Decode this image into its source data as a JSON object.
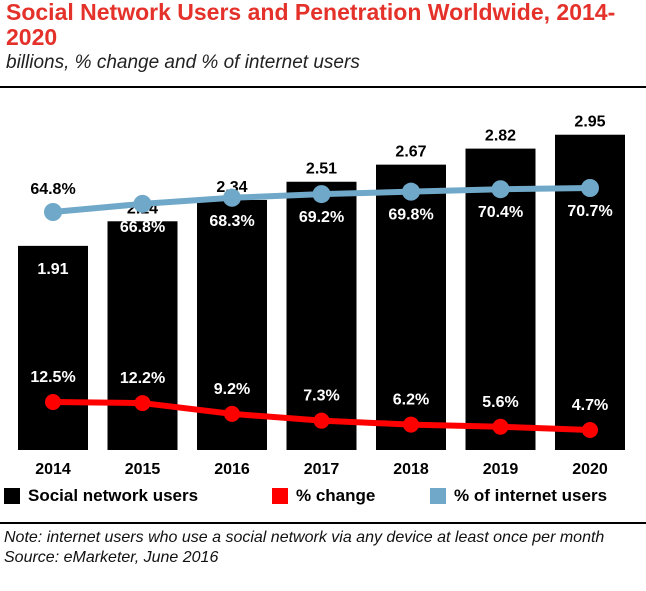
{
  "header": {
    "title": "Social Network Users and Penetration Worldwide, 2014-2020",
    "subtitle": "billions, % change and % of internet users"
  },
  "chart_data": {
    "type": "bar",
    "title": "Social Network Users and Penetration Worldwide, 2014-2020",
    "subtitle": "billions, % change and % of internet users",
    "categories": [
      "2014",
      "2015",
      "2016",
      "2017",
      "2018",
      "2019",
      "2020"
    ],
    "series": [
      {
        "name": "Social network users",
        "type": "bar",
        "unit": "billions",
        "values": [
          1.91,
          2.14,
          2.34,
          2.51,
          2.67,
          2.82,
          2.95
        ],
        "labels": [
          "1.91",
          "2.14",
          "2.34",
          "2.51",
          "2.67",
          "2.82",
          "2.95"
        ]
      },
      {
        "name": "% change",
        "type": "line",
        "unit": "%",
        "values": [
          12.5,
          12.2,
          9.2,
          7.3,
          6.2,
          5.6,
          4.7
        ],
        "labels": [
          "12.5%",
          "12.2%",
          "9.2%",
          "7.3%",
          "6.2%",
          "5.6%",
          "4.7%"
        ]
      },
      {
        "name": "% of internet users",
        "type": "line",
        "unit": "%",
        "values": [
          64.8,
          66.8,
          68.3,
          69.2,
          69.8,
          70.4,
          70.7
        ],
        "labels": [
          "64.8%",
          "66.8%",
          "68.3%",
          "69.2%",
          "69.8%",
          "70.4%",
          "70.7%"
        ]
      }
    ],
    "xlabel": "",
    "ylabel": "",
    "ylim": [
      0,
      3.2
    ],
    "grid": false,
    "legend_position": "bottom"
  },
  "colors": {
    "bar": "#000000",
    "change_line": "#ff0000",
    "penetration_line": "#6fa8c8",
    "title": "#e4322b"
  },
  "legend": {
    "items": [
      {
        "label": "Social network users",
        "color": "#000000"
      },
      {
        "label": "% change",
        "color": "#ff0000"
      },
      {
        "label": "% of internet users",
        "color": "#6fa8c8"
      }
    ]
  },
  "footer": {
    "note": "Note: internet users who use a social network via any device at least once per month",
    "source": "Source: eMarketer, June 2016"
  }
}
